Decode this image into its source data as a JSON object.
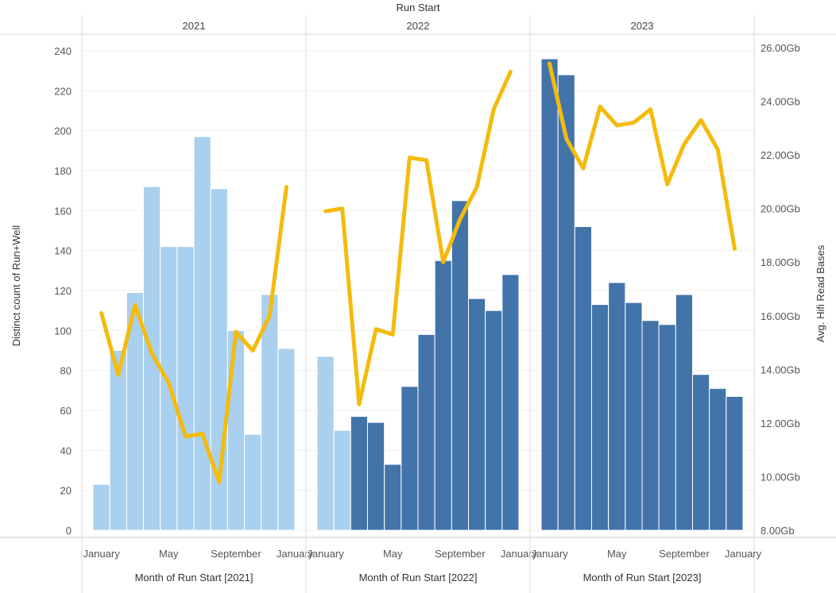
{
  "chart_data": {
    "type": "bar+line",
    "title": "Run Start",
    "facets": [
      {
        "label": "2021",
        "xlabel": "Month of Run Start [2021]",
        "month_tick_labels": [
          "January",
          "May",
          "September",
          "January"
        ],
        "bars": [
          {
            "value": 23,
            "color": "#a9d0ee"
          },
          {
            "value": 90,
            "color": "#a9d0ee"
          },
          {
            "value": 119,
            "color": "#a9d0ee"
          },
          {
            "value": 172,
            "color": "#a9d0ee"
          },
          {
            "value": 142,
            "color": "#a9d0ee"
          },
          {
            "value": 142,
            "color": "#a9d0ee"
          },
          {
            "value": 197,
            "color": "#a9d0ee"
          },
          {
            "value": 171,
            "color": "#a9d0ee"
          },
          {
            "value": 100,
            "color": "#a9d0ee"
          },
          {
            "value": 48,
            "color": "#a9d0ee"
          },
          {
            "value": 118,
            "color": "#a9d0ee"
          },
          {
            "value": 91,
            "color": "#a9d0ee"
          }
        ],
        "line_gb": [
          16.1,
          13.8,
          16.4,
          14.6,
          13.5,
          11.5,
          11.6,
          9.8,
          15.4,
          14.7,
          16.0,
          20.8
        ]
      },
      {
        "label": "2022",
        "xlabel": "Month of Run Start [2022]",
        "month_tick_labels": [
          "January",
          "May",
          "September",
          "January"
        ],
        "bars": [
          {
            "value": 87,
            "color": "#a9d0ee"
          },
          {
            "value": 50,
            "color": "#a9d0ee"
          },
          {
            "value": 57,
            "color": "#4274aa"
          },
          {
            "value": 54,
            "color": "#4274aa"
          },
          {
            "value": 33,
            "color": "#4274aa"
          },
          {
            "value": 72,
            "color": "#4274aa"
          },
          {
            "value": 98,
            "color": "#4274aa"
          },
          {
            "value": 135,
            "color": "#4274aa"
          },
          {
            "value": 165,
            "color": "#4274aa"
          },
          {
            "value": 116,
            "color": "#4274aa"
          },
          {
            "value": 110,
            "color": "#4274aa"
          },
          {
            "value": 128,
            "color": "#4274aa"
          }
        ],
        "line_gb": [
          19.9,
          20.0,
          12.7,
          15.5,
          15.3,
          21.9,
          21.8,
          18.0,
          19.6,
          20.8,
          23.7,
          25.1
        ]
      },
      {
        "label": "2023",
        "xlabel": "Month of Run Start [2023]",
        "month_tick_labels": [
          "January",
          "May",
          "September",
          "January"
        ],
        "bars": [
          {
            "value": 236,
            "color": "#4274aa"
          },
          {
            "value": 228,
            "color": "#4274aa"
          },
          {
            "value": 152,
            "color": "#4274aa"
          },
          {
            "value": 113,
            "color": "#4274aa"
          },
          {
            "value": 124,
            "color": "#4274aa"
          },
          {
            "value": 114,
            "color": "#4274aa"
          },
          {
            "value": 105,
            "color": "#4274aa"
          },
          {
            "value": 103,
            "color": "#4274aa"
          },
          {
            "value": 118,
            "color": "#4274aa"
          },
          {
            "value": 78,
            "color": "#4274aa"
          },
          {
            "value": 71,
            "color": "#4274aa"
          },
          {
            "value": 67,
            "color": "#4274aa"
          }
        ],
        "line_gb": [
          25.4,
          22.6,
          21.5,
          23.8,
          23.1,
          23.2,
          23.7,
          20.9,
          22.4,
          23.3,
          22.2,
          18.5
        ]
      }
    ],
    "y_left": {
      "label": "Distinct count of Run+Well",
      "range": [
        0,
        250
      ],
      "ticks": [
        0,
        20,
        40,
        60,
        80,
        100,
        120,
        140,
        160,
        180,
        200,
        220,
        240
      ]
    },
    "y_right": {
      "label": "Avg. Hifi Read Bases",
      "range": [
        8,
        26.1
      ],
      "ticks": [
        8,
        10,
        12,
        14,
        16,
        18,
        20,
        22,
        24,
        26
      ],
      "tick_labels": [
        "8.00Gb",
        "10.00Gb",
        "12.00Gb",
        "14.00Gb",
        "16.00Gb",
        "18.00Gb",
        "20.00Gb",
        "22.00Gb",
        "24.00Gb",
        "26.00Gb"
      ]
    },
    "line_color": "#f5bb0b",
    "grid": true
  }
}
